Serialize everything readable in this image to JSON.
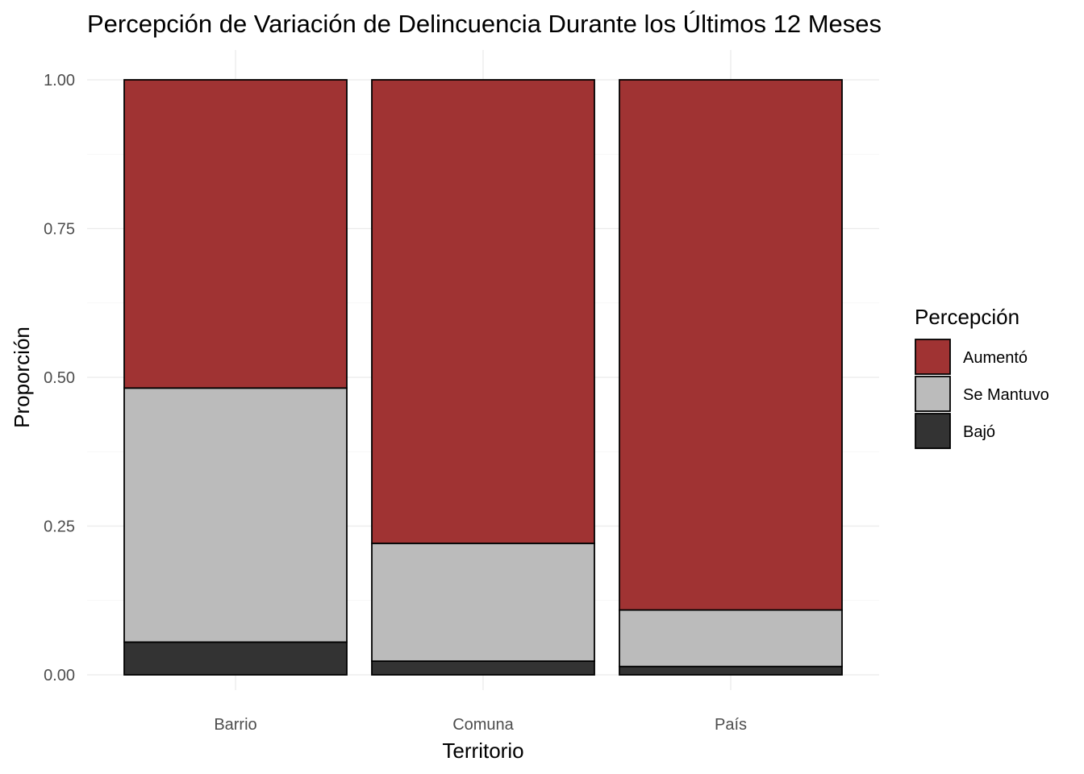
{
  "chart_data": {
    "type": "bar",
    "stacked": true,
    "title": "Percepción de Variación de Delincuencia Durante los Últimos 12 Meses",
    "xlabel": "Territorio",
    "ylabel": "Proporción",
    "categories": [
      "Barrio",
      "Comuna",
      "País"
    ],
    "series": [
      {
        "name": "Bajó",
        "values": [
          0.055,
          0.023,
          0.014
        ],
        "color": "#333333"
      },
      {
        "name": "Se Mantuvo",
        "values": [
          0.427,
          0.198,
          0.095
        ],
        "color": "#bbbbbb"
      },
      {
        "name": "Aumentó",
        "values": [
          0.518,
          0.779,
          0.891
        ],
        "color": "#a03333"
      }
    ],
    "ylim": [
      0,
      1
    ],
    "yticks": [
      "0.00",
      "0.25",
      "0.50",
      "0.75",
      "1.00"
    ],
    "grid": true,
    "legend": {
      "title": "Percepción",
      "position": "right",
      "order": [
        "Aumentó",
        "Se Mantuvo",
        "Bajó"
      ]
    }
  }
}
